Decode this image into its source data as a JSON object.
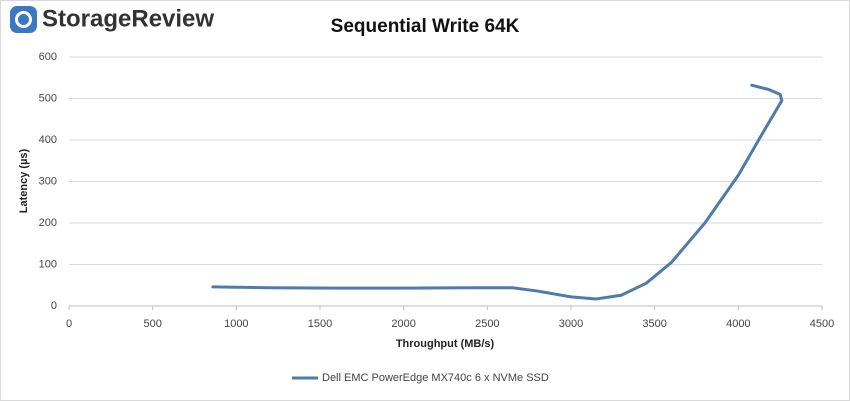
{
  "chart_data": {
    "type": "line",
    "logo": "StorageReview",
    "title": "Sequential Write 64K",
    "x_label": "Throughput  (MB/s)",
    "y_label": "Latency (µs)",
    "x": [
      860,
      1200,
      1600,
      2000,
      2400,
      2650,
      2800,
      3000,
      3150,
      3300,
      3450,
      3600,
      3800,
      4000,
      4150,
      4260,
      4250,
      4180,
      4080
    ],
    "series": [
      {
        "name": "Dell EMC PowerEdge MX740c 6 x NVMe SSD",
        "color": "#4f7bac",
        "values": [
          46,
          44,
          43,
          43,
          44,
          44,
          36,
          22,
          17,
          26,
          55,
          105,
          200,
          315,
          420,
          495,
          510,
          522,
          532
        ]
      }
    ],
    "xlim": [
      0,
      4500
    ],
    "xticks": [
      0,
      500,
      1000,
      1500,
      2000,
      2500,
      3000,
      3500,
      4000,
      4500
    ],
    "ylim": [
      0,
      600
    ],
    "yticks": [
      0,
      100,
      200,
      300,
      400,
      500,
      600
    ],
    "grid": true,
    "legend": "bottom"
  }
}
